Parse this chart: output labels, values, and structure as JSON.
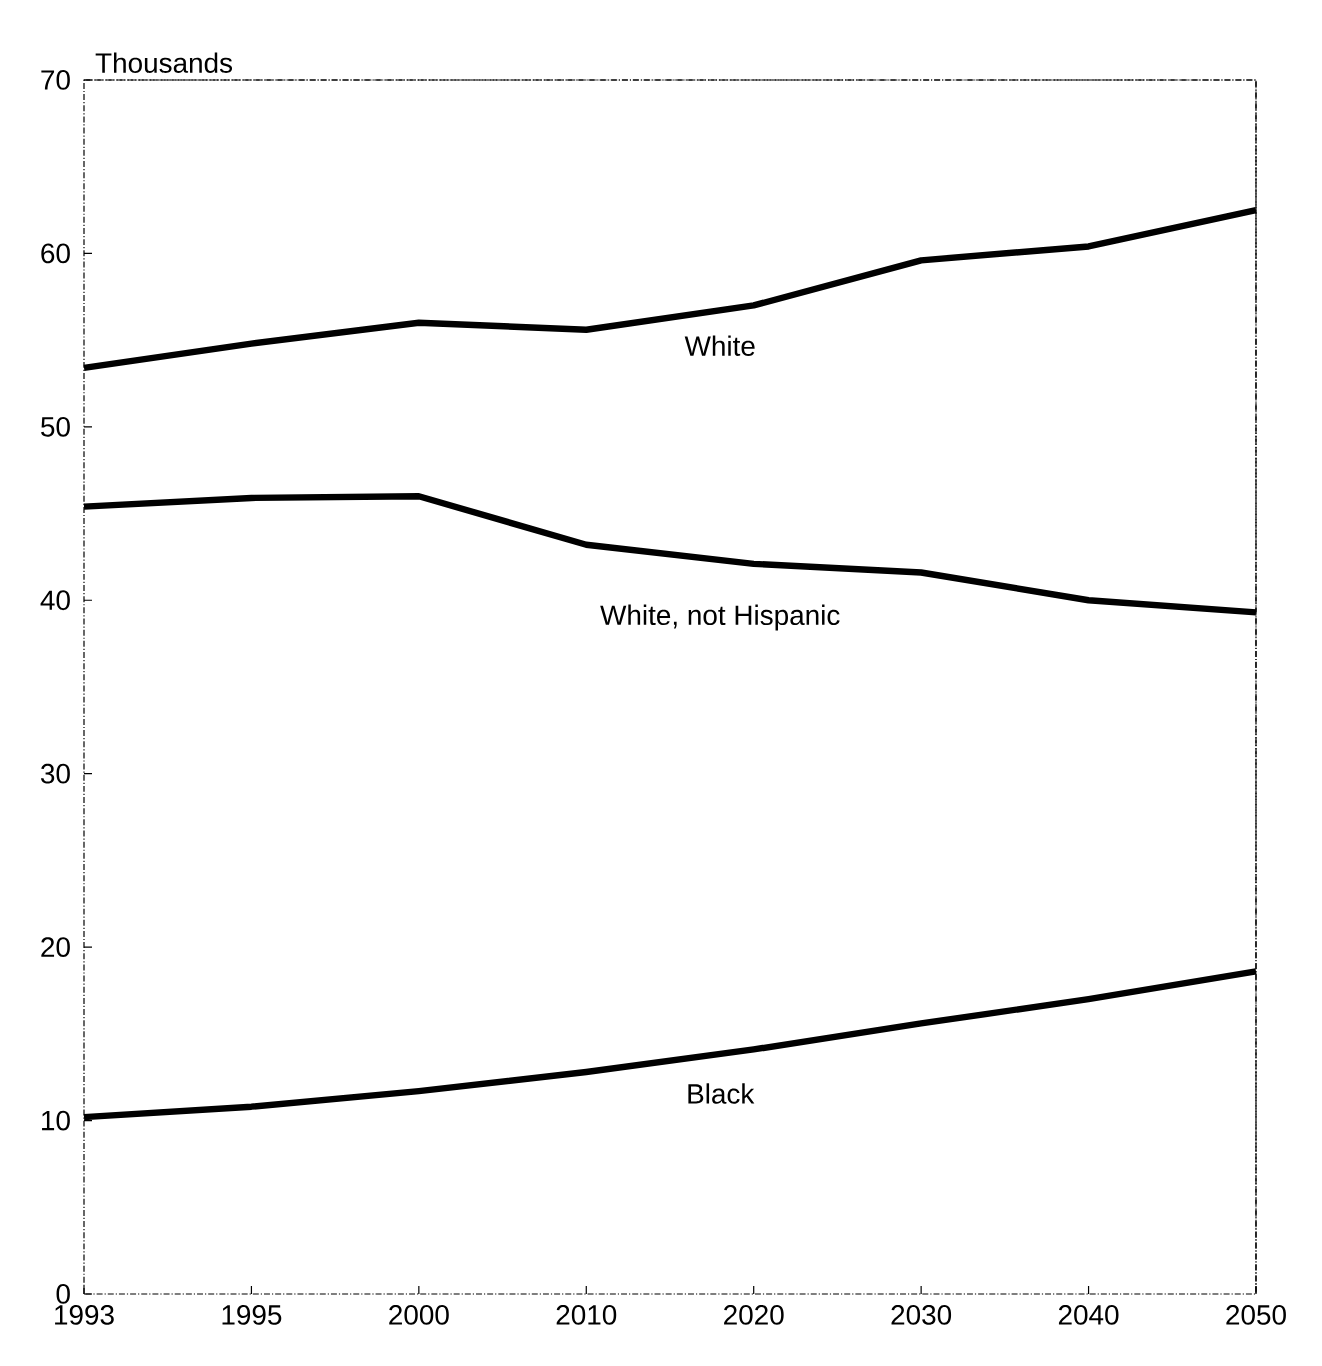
{
  "chart_data": {
    "type": "line",
    "ylabel": "Thousands",
    "categories": [
      "1993",
      "1995",
      "2000",
      "2010",
      "2020",
      "2030",
      "2040",
      "2050"
    ],
    "series": [
      {
        "name": "White",
        "color": "#000000",
        "values": [
          53.4,
          54.8,
          56.0,
          55.6,
          57.0,
          59.6,
          60.4,
          62.5
        ]
      },
      {
        "name": "White, not Hispanic",
        "color": "#000000",
        "values": [
          45.4,
          45.9,
          46.0,
          43.2,
          42.1,
          41.6,
          40.0,
          39.3
        ]
      },
      {
        "name": "Black",
        "color": "#000000",
        "values": [
          10.2,
          10.8,
          11.7,
          12.8,
          14.1,
          15.6,
          17.0,
          18.6
        ]
      }
    ],
    "ylim": [
      0,
      70
    ],
    "yticks": [
      0,
      10,
      20,
      30,
      40,
      50,
      60,
      70
    ],
    "grid": false,
    "marker": "none",
    "line_style": "solid"
  }
}
